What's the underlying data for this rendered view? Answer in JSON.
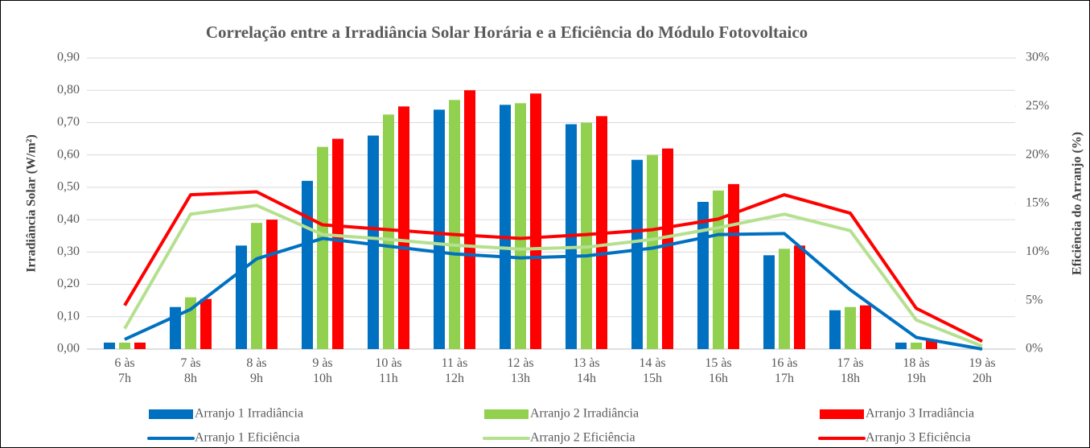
{
  "chart_data": {
    "type": "bar_line",
    "title": "Correlação entre a Irradiância Solar Horária e a Eficiência do Módulo Fotovoltaico",
    "y_label": "Irradiância Solar (W/m²)",
    "y2_label": "Eficiência do Arranjo (%)",
    "categories": [
      "6 às\n7h",
      "7 às\n8h",
      "8 às\n9h",
      "9 às\n10h",
      "10 às\n11h",
      "11 às\n12h",
      "12 às\n13h",
      "13 às\n14h",
      "14 às\n15h",
      "15 às\n16h",
      "16 às\n17h",
      "17 às\n18h",
      "18 às\n19h",
      "19 às\n20h"
    ],
    "series": [
      {
        "name": "Arranjo 1 Irradiância",
        "kind": "bar",
        "color": "#0070c0",
        "values": [
          0.02,
          0.13,
          0.32,
          0.52,
          0.66,
          0.74,
          0.755,
          0.695,
          0.585,
          0.455,
          0.29,
          0.12,
          0.02,
          0
        ]
      },
      {
        "name": "Arranjo 2 Irradiância",
        "kind": "bar",
        "color": "#92d050",
        "values": [
          0.02,
          0.16,
          0.39,
          0.625,
          0.725,
          0.77,
          0.76,
          0.7,
          0.6,
          0.49,
          0.31,
          0.13,
          0.02,
          0
        ]
      },
      {
        "name": "Arranjo 3 Irradiância",
        "kind": "bar",
        "color": "#ff0000",
        "values": [
          0.02,
          0.155,
          0.4,
          0.65,
          0.75,
          0.8,
          0.79,
          0.72,
          0.62,
          0.51,
          0.32,
          0.135,
          0.03,
          0
        ]
      },
      {
        "name": "Arranjo 1 Eficiência",
        "kind": "line",
        "axis": "y2",
        "color": "#0070c0",
        "values": [
          1.0,
          4.1,
          9.3,
          11.4,
          10.6,
          9.8,
          9.4,
          9.6,
          10.4,
          11.8,
          11.9,
          6.1,
          1.2,
          0
        ]
      },
      {
        "name": "Arranjo 2 Eficiência",
        "kind": "line",
        "axis": "y2",
        "color": "#b5e08f",
        "values": [
          2.1,
          13.9,
          14.8,
          11.8,
          11.3,
          10.7,
          10.3,
          10.5,
          11.3,
          12.5,
          13.9,
          12.2,
          3.0,
          0.3
        ]
      },
      {
        "name": "Arranjo 3 Eficiência",
        "kind": "line",
        "axis": "y2",
        "color": "#ff0000",
        "values": [
          4.5,
          15.9,
          16.2,
          12.8,
          12.3,
          11.8,
          11.4,
          11.8,
          12.3,
          13.4,
          15.9,
          14.0,
          4.2,
          0.8
        ]
      }
    ],
    "ylim": [
      0,
      0.9
    ],
    "yticks": [
      {
        "value": 0,
        "label": "0,00"
      },
      {
        "value": 0.1,
        "label": "0,10"
      },
      {
        "value": 0.2,
        "label": "0,20"
      },
      {
        "value": 0.3,
        "label": "0,30"
      },
      {
        "value": 0.4,
        "label": "0,40"
      },
      {
        "value": 0.5,
        "label": "0,50"
      },
      {
        "value": 0.6,
        "label": "0,60"
      },
      {
        "value": 0.7,
        "label": "0,70"
      },
      {
        "value": 0.8,
        "label": "0,80"
      },
      {
        "value": 0.9,
        "label": "0,90"
      }
    ],
    "y2lim": [
      0,
      30
    ],
    "y2ticks": [
      {
        "value": 0,
        "label": "0%"
      },
      {
        "value": 5,
        "label": "5%"
      },
      {
        "value": 10,
        "label": "10%"
      },
      {
        "value": 15,
        "label": "15%"
      },
      {
        "value": 20,
        "label": "20%"
      },
      {
        "value": 25,
        "label": "25%"
      },
      {
        "value": 30,
        "label": "30%"
      }
    ],
    "grid": true,
    "legend": "bottom"
  }
}
